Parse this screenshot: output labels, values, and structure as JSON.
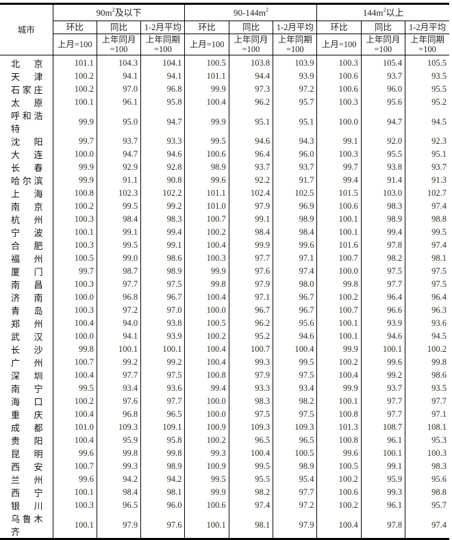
{
  "header": {
    "city_label": "城市",
    "groups": [
      {
        "pre": "90m",
        "sup": "2",
        "post": "及以下"
      },
      {
        "pre": "90-144m",
        "sup": "2",
        "post": ""
      },
      {
        "pre": "144m",
        "sup": "2",
        "post": "以上"
      }
    ],
    "sub": [
      "环比",
      "同比",
      "1-2月平均"
    ],
    "base": [
      "上月=100",
      "上年同月=100",
      "上年同期=100"
    ]
  },
  "rows": [
    [
      "北京",
      "101.1",
      "104.3",
      "104.1",
      "100.5",
      "103.8",
      "103.9",
      "100.3",
      "105.4",
      "105.5"
    ],
    [
      "天津",
      "100.2",
      "94.1",
      "94.1",
      "101.1",
      "94.4",
      "93.9",
      "100.6",
      "93.7",
      "93.5"
    ],
    [
      "石家庄",
      "100.2",
      "97.0",
      "96.8",
      "99.9",
      "97.3",
      "97.2",
      "100.6",
      "96.0",
      "95.5"
    ],
    [
      "太原",
      "100.1",
      "96.1",
      "95.8",
      "100.4",
      "96.2",
      "95.7",
      "100.3",
      "95.6",
      "95.2"
    ],
    [
      "呼和浩特",
      "99.9",
      "95.0",
      "94.7",
      "99.9",
      "95.1",
      "95.1",
      "100.0",
      "94.7",
      "94.5"
    ],
    [
      "沈阳",
      "99.7",
      "93.7",
      "93.3",
      "99.5",
      "94.6",
      "94.3",
      "99.1",
      "92.0",
      "92.3"
    ],
    [
      "大连",
      "100.0",
      "94.7",
      "94.6",
      "100.6",
      "96.4",
      "96.0",
      "100.3",
      "95.5",
      "95.1"
    ],
    [
      "长春",
      "99.9",
      "92.9",
      "92.8",
      "98.9",
      "93.7",
      "93.7",
      "99.7",
      "93.8",
      "93.7"
    ],
    [
      "哈尔滨",
      "99.9",
      "91.1",
      "90.8",
      "99.6",
      "92.2",
      "91.7",
      "99.4",
      "91.4",
      "91.3"
    ],
    [
      "上海",
      "100.8",
      "102.3",
      "102.2",
      "101.1",
      "102.4",
      "102.5",
      "101.5",
      "103.0",
      "102.7"
    ],
    [
      "南京",
      "100.2",
      "99.5",
      "99.2",
      "101.0",
      "97.9",
      "96.9",
      "100.6",
      "98.3",
      "97.4"
    ],
    [
      "杭州",
      "100.3",
      "98.4",
      "98.3",
      "100.7",
      "99.1",
      "98.9",
      "100.1",
      "98.9",
      "98.8"
    ],
    [
      "宁波",
      "100.1",
      "99.1",
      "99.4",
      "100.2",
      "98.4",
      "98.4",
      "100.1",
      "99.4",
      "99.5"
    ],
    [
      "合肥",
      "100.3",
      "99.5",
      "99.1",
      "100.4",
      "99.9",
      "99.6",
      "101.6",
      "97.8",
      "97.4"
    ],
    [
      "福州",
      "100.5",
      "99.0",
      "98.6",
      "100.3",
      "97.7",
      "97.1",
      "100.7",
      "98.2",
      "98.1"
    ],
    [
      "厦门",
      "99.7",
      "98.7",
      "98.9",
      "99.9",
      "97.6",
      "97.4",
      "100.0",
      "97.5",
      "97.5"
    ],
    [
      "南昌",
      "100.3",
      "97.7",
      "97.5",
      "99.8",
      "97.9",
      "98.0",
      "99.8",
      "97.7",
      "97.5"
    ],
    [
      "济南",
      "100.0",
      "96.8",
      "96.7",
      "100.4",
      "97.1",
      "96.7",
      "100.2",
      "96.4",
      "96.4"
    ],
    [
      "青岛",
      "100.3",
      "97.2",
      "97.0",
      "100.0",
      "96.7",
      "96.7",
      "100.7",
      "96.6",
      "96.3"
    ],
    [
      "郑州",
      "100.4",
      "94.0",
      "93.8",
      "100.5",
      "96.2",
      "95.6",
      "100.1",
      "93.9",
      "93.6"
    ],
    [
      "武汉",
      "100.0",
      "94.1",
      "93.9",
      "100.2",
      "95.2",
      "94.6",
      "100.1",
      "94.6",
      "94.5"
    ],
    [
      "长沙",
      "99.8",
      "100.1",
      "100.1",
      "100.4",
      "100.7",
      "100.4",
      "99.9",
      "100.1",
      "100.2"
    ],
    [
      "广州",
      "100.7",
      "99.2",
      "99.2",
      "100.4",
      "99.3",
      "99.5",
      "100.2",
      "99.6",
      "99.8"
    ],
    [
      "深圳",
      "100.4",
      "97.7",
      "97.5",
      "100.8",
      "97.9",
      "97.5",
      "100.4",
      "99.2",
      "98.6"
    ],
    [
      "南宁",
      "99.5",
      "93.4",
      "93.6",
      "99.4",
      "93.3",
      "93.4",
      "99.9",
      "93.7",
      "93.5"
    ],
    [
      "海口",
      "100.2",
      "97.6",
      "97.7",
      "100.0",
      "98.3",
      "98.2",
      "100.1",
      "97.7",
      "97.7"
    ],
    [
      "重庆",
      "100.4",
      "96.8",
      "96.5",
      "100.0",
      "97.5",
      "97.5",
      "100.8",
      "97.7",
      "97.1"
    ],
    [
      "成都",
      "101.0",
      "109.3",
      "109.1",
      "100.9",
      "109.3",
      "109.3",
      "101.3",
      "108.7",
      "108.1"
    ],
    [
      "贵阳",
      "100.4",
      "95.9",
      "95.8",
      "100.2",
      "96.5",
      "96.5",
      "100.8",
      "96.1",
      "95.3"
    ],
    [
      "昆明",
      "99.6",
      "99.8",
      "99.8",
      "99.3",
      "100.4",
      "100.5",
      "99.6",
      "100.1",
      "100.3"
    ],
    [
      "西安",
      "100.7",
      "99.3",
      "98.9",
      "100.9",
      "99.5",
      "98.9",
      "100.5",
      "99.1",
      "98.3"
    ],
    [
      "兰州",
      "99.6",
      "94.2",
      "94.2",
      "99.5",
      "95.5",
      "95.4",
      "100.2",
      "95.9",
      "95.6"
    ],
    [
      "西宁",
      "100.1",
      "98.4",
      "98.1",
      "99.9",
      "98.2",
      "97.7",
      "100.6",
      "99.3",
      "98.8"
    ],
    [
      "银川",
      "100.3",
      "96.5",
      "96.0",
      "100.6",
      "97.4",
      "97.2",
      "100.2",
      "96.1",
      "95.7"
    ],
    [
      "乌鲁木齐",
      "100.1",
      "97.9",
      "97.6",
      "100.1",
      "98.1",
      "97.9",
      "100.4",
      "97.8",
      "97.4"
    ]
  ]
}
